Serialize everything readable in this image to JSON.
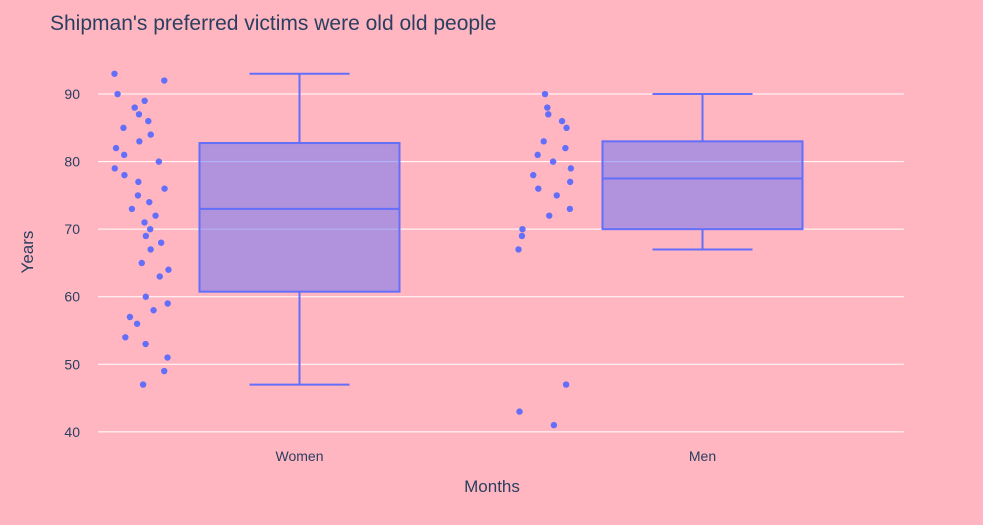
{
  "colors": {
    "paper": "#FFB6C1",
    "grid": "#FFFFFF",
    "box_line": "#636EFA",
    "box_fill": "rgba(99,110,250,0.5)",
    "point": "#636EFA",
    "text": "#2a3f5f"
  },
  "chart_data": {
    "type": "box",
    "title": "Shipman's preferred victims were old old people",
    "xlabel": "Months",
    "ylabel": "Years",
    "ylim": [
      38.5,
      98
    ],
    "yticks": [
      40,
      50,
      60,
      70,
      80,
      90
    ],
    "grid": true,
    "boxpoints": "all",
    "categories": [
      "Women",
      "Men"
    ],
    "series": [
      {
        "category": "Women",
        "stats": {
          "min": 47,
          "q1": 60.75,
          "median": 73,
          "q3": 82.75,
          "max": 93
        },
        "points": [
          93,
          92,
          90,
          89,
          88,
          87,
          86,
          85,
          84,
          83,
          82,
          81,
          80,
          79,
          78,
          77,
          76,
          75,
          74,
          73,
          72,
          71,
          70,
          69,
          68,
          67,
          65,
          64,
          63,
          60,
          59,
          58,
          57,
          56,
          54,
          53,
          51,
          49,
          47
        ]
      },
      {
        "category": "Men",
        "stats": {
          "min": 67,
          "q1": 70,
          "median": 77.5,
          "q3": 83,
          "max": 90
        },
        "points": [
          90,
          88,
          87,
          86,
          85,
          83,
          82,
          81,
          80,
          79,
          78,
          77,
          76,
          75,
          73,
          72,
          70,
          69,
          67,
          47,
          43,
          41
        ]
      }
    ]
  }
}
